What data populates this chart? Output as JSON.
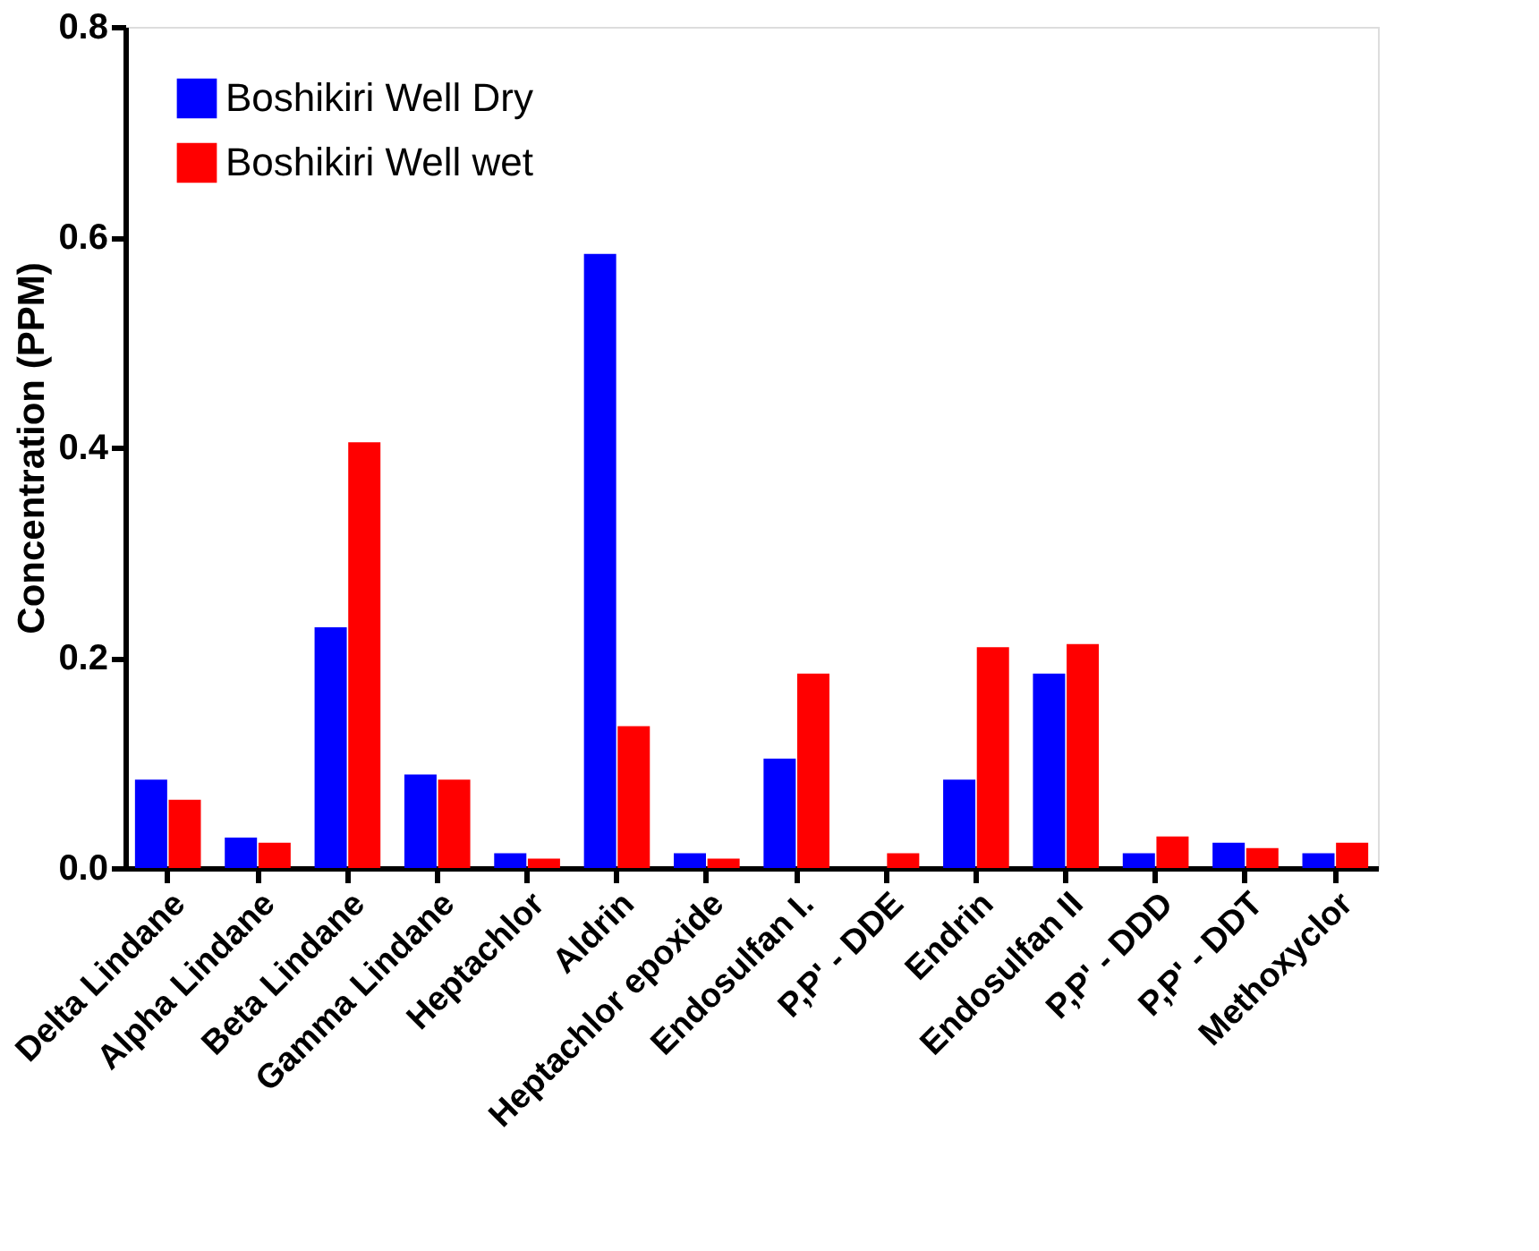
{
  "chart_data": {
    "type": "bar",
    "ylabel": "Concentration (PPM)",
    "categories": [
      "Delta Lindane",
      "Alpha Lindane",
      "Beta Lindane",
      "Gamma Lindane",
      "Heptachlor",
      "Aldrin",
      "Heptachlor epoxide",
      "Endosulfan I.",
      "P,P' - DDE",
      "Endrin",
      "Endosulfan II",
      "P,P' - DDD",
      "P,P' - DDT",
      "Methoxyclor"
    ],
    "series": [
      {
        "name": "Boshikiri Well Dry",
        "color": "#0000ff",
        "values": [
          0.084,
          0.029,
          0.229,
          0.089,
          0.014,
          0.584,
          0.014,
          0.104,
          0,
          0.084,
          0.185,
          0.014,
          0.024,
          0.014
        ]
      },
      {
        "name": "Boshikiri Well wet",
        "color": "#ff0000",
        "values": [
          0.065,
          0.024,
          0.405,
          0.084,
          0.009,
          0.135,
          0.009,
          0.185,
          0.014,
          0.21,
          0.213,
          0.03,
          0.019,
          0.024
        ]
      }
    ],
    "ylim": [
      0,
      0.8
    ],
    "yticks": [
      {
        "value": 0,
        "label": "0.0"
      },
      0.2,
      0.4,
      0.6,
      0.8
    ],
    "grid": false,
    "legend": "top left"
  }
}
